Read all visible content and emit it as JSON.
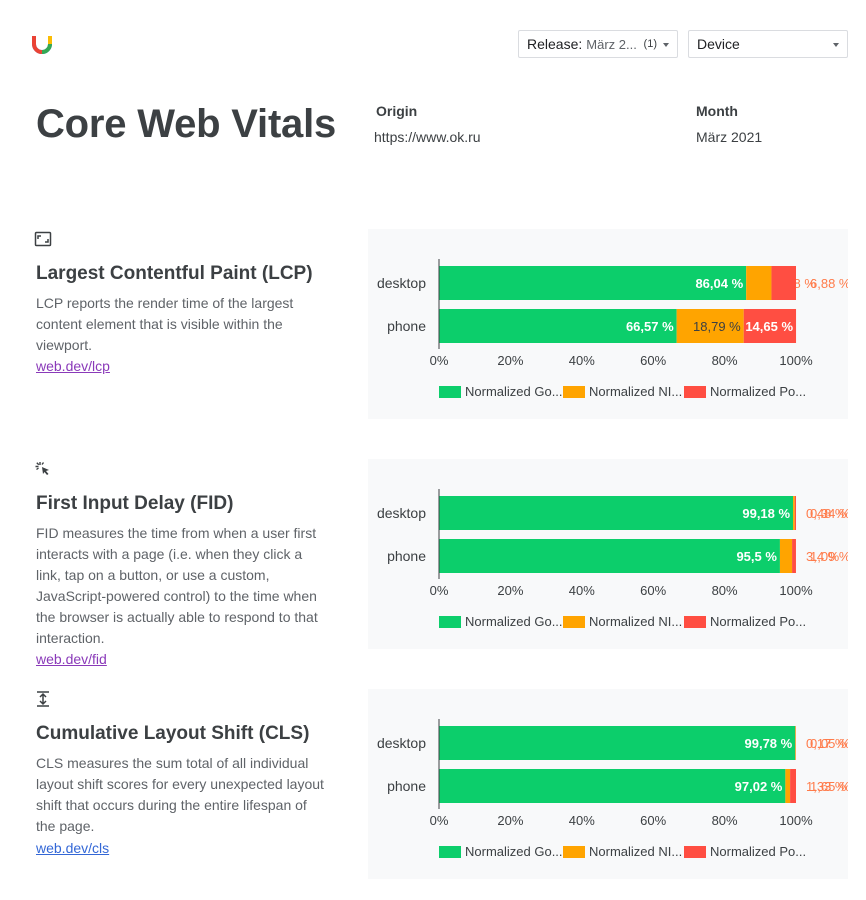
{
  "colors": {
    "good": "#0cce6b",
    "ni": "#ffa400",
    "poor": "#ff4e42",
    "panel": "#f8f9fa"
  },
  "header": {
    "logo_icon": "lighthouse-logo-icon",
    "release_label": "Release:",
    "release_value": "März 2...",
    "release_count": "(1)",
    "device_label": "Device"
  },
  "page_title": "Core Web Vitals",
  "origin": {
    "label": "Origin",
    "value": "https://www.ok.ru"
  },
  "month": {
    "label": "Month",
    "value": "März 2021"
  },
  "sections": [
    {
      "icon": "resize-frame-icon",
      "title": "Largest Contentful Paint (LCP)",
      "description": "LCP reports the render time of the largest content element that is visible within the viewport.",
      "link": "web.dev/lcp"
    },
    {
      "icon": "cursor-click-icon",
      "title": "First Input Delay (FID)",
      "description": "FID measures the time from when a user first interacts with a page (i.e. when they click a link, tap on a button, or use a custom, JavaScript-powered control) to the time when the browser is actually able to respond to that interaction.",
      "link": "web.dev/fid"
    },
    {
      "icon": "vertical-shift-icon",
      "title": "Cumulative Layout Shift (CLS)",
      "description": "CLS measures the sum total of all individual layout shift scores for every unexpected layout shift that occurs during the entire lifespan of the page.",
      "link": "web.dev/cls"
    }
  ],
  "chart_data": [
    {
      "type": "bar",
      "orientation": "horizontal",
      "stacked": true,
      "categories": [
        "desktop",
        "phone"
      ],
      "series": [
        {
          "name": "Normalized Go...",
          "values": [
            86.04,
            66.57
          ],
          "labels": [
            "86,04 %",
            "66,57 %"
          ]
        },
        {
          "name": "Normalized NI...",
          "values": [
            7.08,
            18.79
          ],
          "labels": [
            "7,08 %",
            "18,79 %"
          ]
        },
        {
          "name": "Normalized Po...",
          "values": [
            6.88,
            14.65
          ],
          "labels": [
            "6,88 %",
            "14,65 %"
          ]
        }
      ],
      "x_ticks": [
        "0%",
        "20%",
        "40%",
        "60%",
        "80%",
        "100%"
      ],
      "xlim": [
        0,
        100
      ],
      "legend": "bottom"
    },
    {
      "type": "bar",
      "orientation": "horizontal",
      "stacked": true,
      "categories": [
        "desktop",
        "phone"
      ],
      "series": [
        {
          "name": "Normalized Go...",
          "values": [
            99.18,
            95.5
          ],
          "labels": [
            "99,18 %",
            "95,5 %"
          ]
        },
        {
          "name": "Normalized NI...",
          "values": [
            0.48,
            3.4
          ],
          "labels": [
            "0,48 %",
            "3,4 %"
          ]
        },
        {
          "name": "Normalized Po...",
          "values": [
            0.34,
            1.09
          ],
          "labels": [
            "0,34 %",
            "1,09 %"
          ]
        }
      ],
      "x_ticks": [
        "0%",
        "20%",
        "40%",
        "60%",
        "80%",
        "100%"
      ],
      "xlim": [
        0,
        100
      ],
      "legend": "bottom"
    },
    {
      "type": "bar",
      "orientation": "horizontal",
      "stacked": true,
      "categories": [
        "desktop",
        "phone"
      ],
      "series": [
        {
          "name": "Normalized Go...",
          "values": [
            99.78,
            97.02
          ],
          "labels": [
            "99,78 %",
            "97,02 %"
          ]
        },
        {
          "name": "Normalized NI...",
          "values": [
            0.17,
            1.33
          ],
          "labels": [
            "0,17 %",
            "1,33 %"
          ]
        },
        {
          "name": "Normalized Po...",
          "values": [
            0.05,
            1.65
          ],
          "labels": [
            "0,05 %",
            "1,65 %"
          ]
        }
      ],
      "x_ticks": [
        "0%",
        "20%",
        "40%",
        "60%",
        "80%",
        "100%"
      ],
      "xlim": [
        0,
        100
      ],
      "legend": "bottom"
    }
  ]
}
